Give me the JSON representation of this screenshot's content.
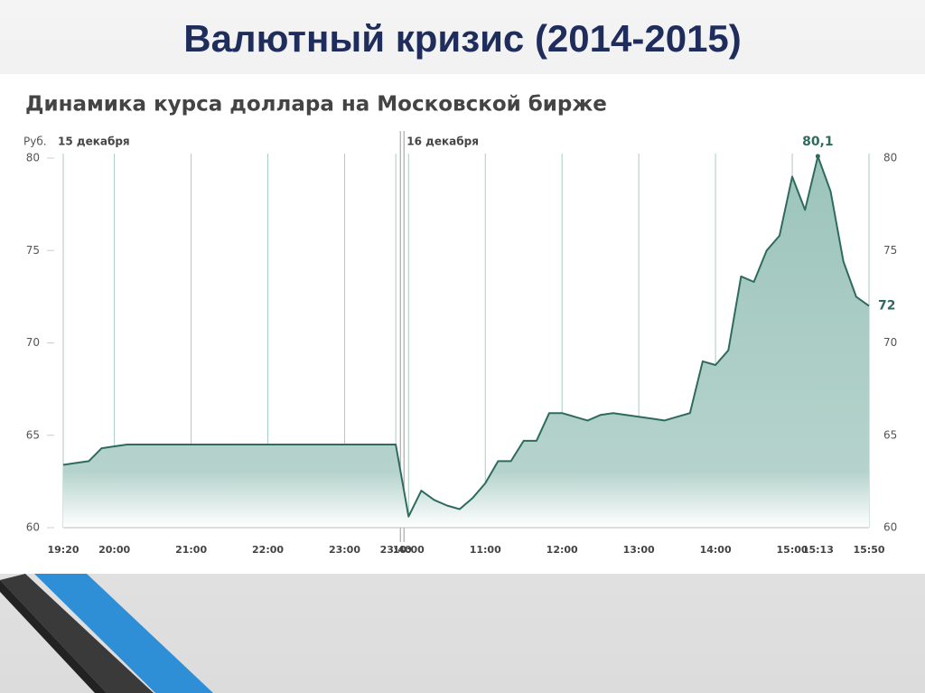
{
  "title": "Валютный кризис (2014-2015)",
  "chart_data": {
    "type": "area",
    "title": "Динамика курса доллара на Московской бирже",
    "y_unit": "Руб.",
    "annotations": [
      "15 декабря",
      "16 декабря"
    ],
    "categories": [
      "19:20",
      null,
      null,
      null,
      "20:00",
      null,
      null,
      null,
      null,
      null,
      "21:00",
      null,
      null,
      null,
      null,
      null,
      "22:00",
      null,
      null,
      null,
      null,
      null,
      "23:00",
      null,
      null,
      null,
      "23:40",
      "10:00",
      null,
      null,
      null,
      null,
      null,
      "11:00",
      null,
      null,
      null,
      null,
      null,
      "12:00",
      null,
      null,
      null,
      null,
      null,
      "13:00",
      null,
      null,
      null,
      null,
      null,
      "14:00",
      null,
      null,
      null,
      null,
      null,
      "15:00",
      null,
      "15:13",
      null,
      null,
      null,
      "15:50"
    ],
    "values": [
      63.4,
      63.5,
      63.6,
      64.3,
      64.4,
      64.5,
      64.5,
      64.5,
      64.5,
      64.5,
      64.5,
      64.5,
      64.5,
      64.5,
      64.5,
      64.5,
      64.5,
      64.5,
      64.5,
      64.5,
      64.5,
      64.5,
      64.5,
      64.5,
      64.5,
      64.5,
      64.5,
      60.6,
      62.0,
      61.5,
      61.2,
      61.0,
      61.6,
      62.4,
      63.6,
      63.6,
      64.7,
      64.7,
      66.2,
      66.2,
      66.0,
      65.8,
      66.1,
      66.2,
      66.1,
      66.0,
      65.9,
      65.8,
      66.0,
      66.2,
      69.0,
      68.8,
      69.6,
      73.6,
      73.3,
      75.0,
      75.8,
      79.0,
      77.2,
      80.1,
      78.2,
      74.4,
      72.5,
      72.0
    ],
    "value_labels": [
      null,
      null,
      null,
      null,
      null,
      null,
      null,
      null,
      null,
      null,
      null,
      null,
      null,
      null,
      null,
      null,
      null,
      null,
      null,
      null,
      null,
      null,
      null,
      null,
      null,
      null,
      null,
      null,
      null,
      null,
      null,
      null,
      null,
      null,
      null,
      null,
      null,
      null,
      null,
      null,
      null,
      null,
      null,
      null,
      null,
      null,
      null,
      null,
      null,
      null,
      null,
      null,
      null,
      null,
      null,
      null,
      null,
      null,
      null,
      "80,1",
      null,
      null,
      null,
      null
    ],
    "color": "#2e6b5e",
    "fill": "#9cc4bb",
    "ylim": [
      60,
      80
    ],
    "yticks": [
      60,
      65,
      70,
      75,
      80
    ],
    "grid": true
  }
}
